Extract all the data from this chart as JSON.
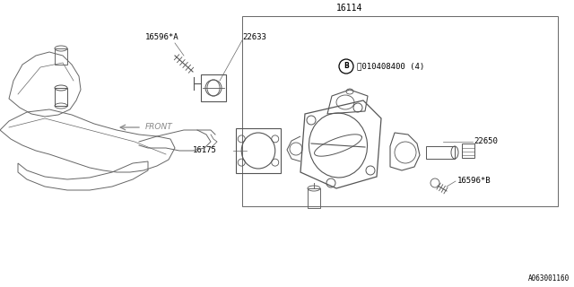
{
  "bg_color": "#ffffff",
  "lc": "#666666",
  "pc": "#555555",
  "figsize": [
    6.4,
    3.2
  ],
  "dpi": 100,
  "title_part_number": "16114",
  "label_16596A": "16596*A",
  "label_22633": "22633",
  "label_B_bolt": "Ⓑ010408400 (4)",
  "label_22650": "22650",
  "label_16596B": "16596*B",
  "label_16175": "16175",
  "label_front": "FRONT",
  "footnote": "A063001160"
}
